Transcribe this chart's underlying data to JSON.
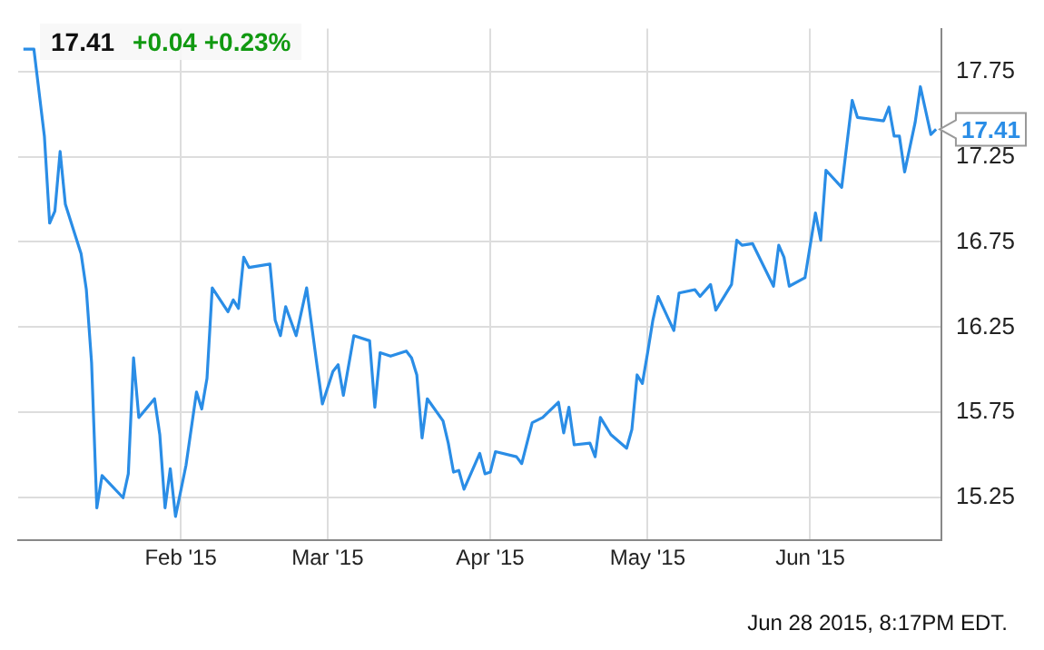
{
  "chart_data": {
    "type": "line",
    "title": "17.41",
    "subtitle": "+0.04 +0.23%",
    "x": [
      "2015-01-02",
      "2015-01-04",
      "2015-01-06",
      "2015-01-07",
      "2015-01-08",
      "2015-01-09",
      "2015-01-10",
      "2015-01-13",
      "2015-01-14",
      "2015-01-15",
      "2015-01-16",
      "2015-01-17",
      "2015-01-21",
      "2015-01-22",
      "2015-01-23",
      "2015-01-24",
      "2015-01-27",
      "2015-01-28",
      "2015-01-29",
      "2015-01-30",
      "2015-01-31",
      "2015-02-02",
      "2015-02-04",
      "2015-02-05",
      "2015-02-06",
      "2015-02-07",
      "2015-02-10",
      "2015-02-11",
      "2015-02-12",
      "2015-02-13",
      "2015-02-14",
      "2015-02-18",
      "2015-02-19",
      "2015-02-20",
      "2015-02-21",
      "2015-02-23",
      "2015-02-25",
      "2015-02-27",
      "2015-02-28",
      "2015-03-02",
      "2015-03-03",
      "2015-03-04",
      "2015-03-06",
      "2015-03-09",
      "2015-03-10",
      "2015-03-11",
      "2015-03-13",
      "2015-03-16",
      "2015-03-17",
      "2015-03-18",
      "2015-03-19",
      "2015-03-20",
      "2015-03-23",
      "2015-03-24",
      "2015-03-25",
      "2015-03-26",
      "2015-03-27",
      "2015-03-30",
      "2015-03-31",
      "2015-04-01",
      "2015-04-02",
      "2015-04-06",
      "2015-04-07",
      "2015-04-08",
      "2015-04-09",
      "2015-04-11",
      "2015-04-14",
      "2015-04-15",
      "2015-04-16",
      "2015-04-17",
      "2015-04-20",
      "2015-04-21",
      "2015-04-22",
      "2015-04-24",
      "2015-04-27",
      "2015-04-28",
      "2015-04-29",
      "2015-04-30",
      "2015-05-01",
      "2015-05-02",
      "2015-05-03",
      "2015-05-06",
      "2015-05-07",
      "2015-05-10",
      "2015-05-11",
      "2015-05-13",
      "2015-05-14",
      "2015-05-17",
      "2015-05-18",
      "2015-05-19",
      "2015-05-21",
      "2015-05-25",
      "2015-05-26",
      "2015-05-27",
      "2015-05-28",
      "2015-05-31",
      "2015-06-02",
      "2015-06-03",
      "2015-06-04",
      "2015-06-07",
      "2015-06-09",
      "2015-06-10",
      "2015-06-15",
      "2015-06-16",
      "2015-06-17",
      "2015-06-18",
      "2015-06-19",
      "2015-06-21",
      "2015-06-22",
      "2015-06-24",
      "2015-06-25"
    ],
    "series": [
      {
        "color": "#2a8de6",
        "values": [
          17.88,
          17.88,
          17.37,
          16.86,
          16.93,
          17.28,
          16.97,
          16.68,
          16.47,
          16.04,
          15.19,
          15.38,
          15.25,
          15.39,
          16.07,
          15.72,
          15.83,
          15.62,
          15.19,
          15.42,
          15.14,
          15.44,
          15.87,
          15.77,
          15.95,
          16.48,
          16.34,
          16.41,
          16.36,
          16.66,
          16.6,
          16.62,
          16.29,
          16.2,
          16.37,
          16.2,
          16.48,
          16.02,
          15.8,
          15.99,
          16.03,
          15.85,
          16.2,
          16.17,
          15.78,
          16.1,
          16.08,
          16.11,
          16.07,
          15.97,
          15.6,
          15.83,
          15.7,
          15.57,
          15.4,
          15.41,
          15.3,
          15.51,
          15.39,
          15.4,
          15.52,
          15.49,
          15.45,
          15.57,
          15.69,
          15.72,
          15.81,
          15.63,
          15.78,
          15.56,
          15.57,
          15.49,
          15.72,
          15.62,
          15.54,
          15.65,
          15.97,
          15.92,
          16.1,
          16.29,
          16.43,
          16.23,
          16.45,
          16.47,
          16.43,
          16.5,
          16.35,
          16.5,
          16.76,
          16.73,
          16.74,
          16.49,
          16.73,
          16.66,
          16.49,
          16.54,
          16.92,
          16.76,
          17.17,
          17.07,
          17.58,
          17.48,
          17.46,
          17.54,
          17.37,
          17.37,
          17.16,
          17.45,
          17.66,
          17.38,
          17.41
        ]
      }
    ],
    "xlim": [
      "2015-01-01",
      "2015-06-26"
    ],
    "xticks": [
      {
        "value": "2015-02-01",
        "label": "Feb '15"
      },
      {
        "value": "2015-03-01",
        "label": "Mar '15"
      },
      {
        "value": "2015-04-01",
        "label": "Apr '15"
      },
      {
        "value": "2015-05-01",
        "label": "May '15"
      },
      {
        "value": "2015-06-01",
        "label": "Jun '15"
      }
    ],
    "ylim": [
      15.0,
      18.0
    ],
    "yticks": [
      15.25,
      15.75,
      16.25,
      16.75,
      17.25,
      17.75
    ],
    "grid": true,
    "legend": false,
    "marker": "none",
    "line_style": "solid",
    "annotations": [
      {
        "text": "17.41",
        "x": "2015-06-25",
        "y": 17.41
      },
      "Jun 28 2015, 8:17PM EDT."
    ]
  }
}
